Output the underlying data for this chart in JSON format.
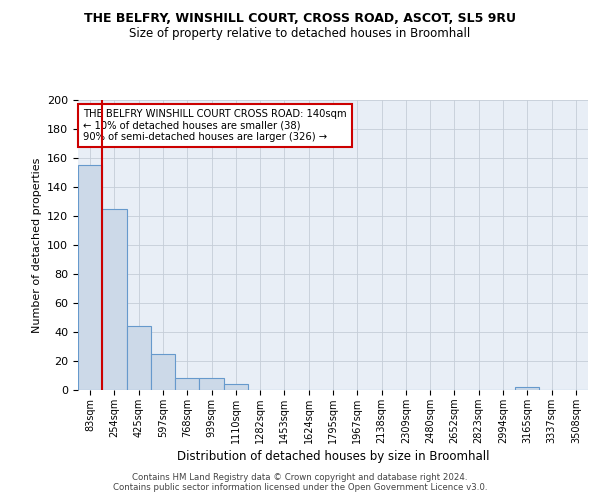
{
  "title": "THE BELFRY, WINSHILL COURT, CROSS ROAD, ASCOT, SL5 9RU",
  "subtitle": "Size of property relative to detached houses in Broomhall",
  "xlabel": "Distribution of detached houses by size in Broomhall",
  "ylabel": "Number of detached properties",
  "bar_color": "#ccd9e8",
  "bar_edge_color": "#6699cc",
  "categories": [
    "83sqm",
    "254sqm",
    "425sqm",
    "597sqm",
    "768sqm",
    "939sqm",
    "1110sqm",
    "1282sqm",
    "1453sqm",
    "1624sqm",
    "1795sqm",
    "1967sqm",
    "2138sqm",
    "2309sqm",
    "2480sqm",
    "2652sqm",
    "2823sqm",
    "2994sqm",
    "3165sqm",
    "3337sqm",
    "3508sqm"
  ],
  "values": [
    155,
    125,
    44,
    25,
    8,
    8,
    4,
    0,
    0,
    0,
    0,
    0,
    0,
    0,
    0,
    0,
    0,
    0,
    2,
    0,
    0
  ],
  "ylim": [
    0,
    200
  ],
  "yticks": [
    0,
    20,
    40,
    60,
    80,
    100,
    120,
    140,
    160,
    180,
    200
  ],
  "property_line_x": 0.5,
  "property_line_color": "#cc0000",
  "annotation_text": "THE BELFRY WINSHILL COURT CROSS ROAD: 140sqm\n← 10% of detached houses are smaller (38)\n90% of semi-detached houses are larger (326) →",
  "annotation_box_color": "#ffffff",
  "annotation_box_edge": "#cc0000",
  "footer_line1": "Contains HM Land Registry data © Crown copyright and database right 2024.",
  "footer_line2": "Contains public sector information licensed under the Open Government Licence v3.0.",
  "background_color": "#e8eef6",
  "grid_color": "#c5cdd8"
}
